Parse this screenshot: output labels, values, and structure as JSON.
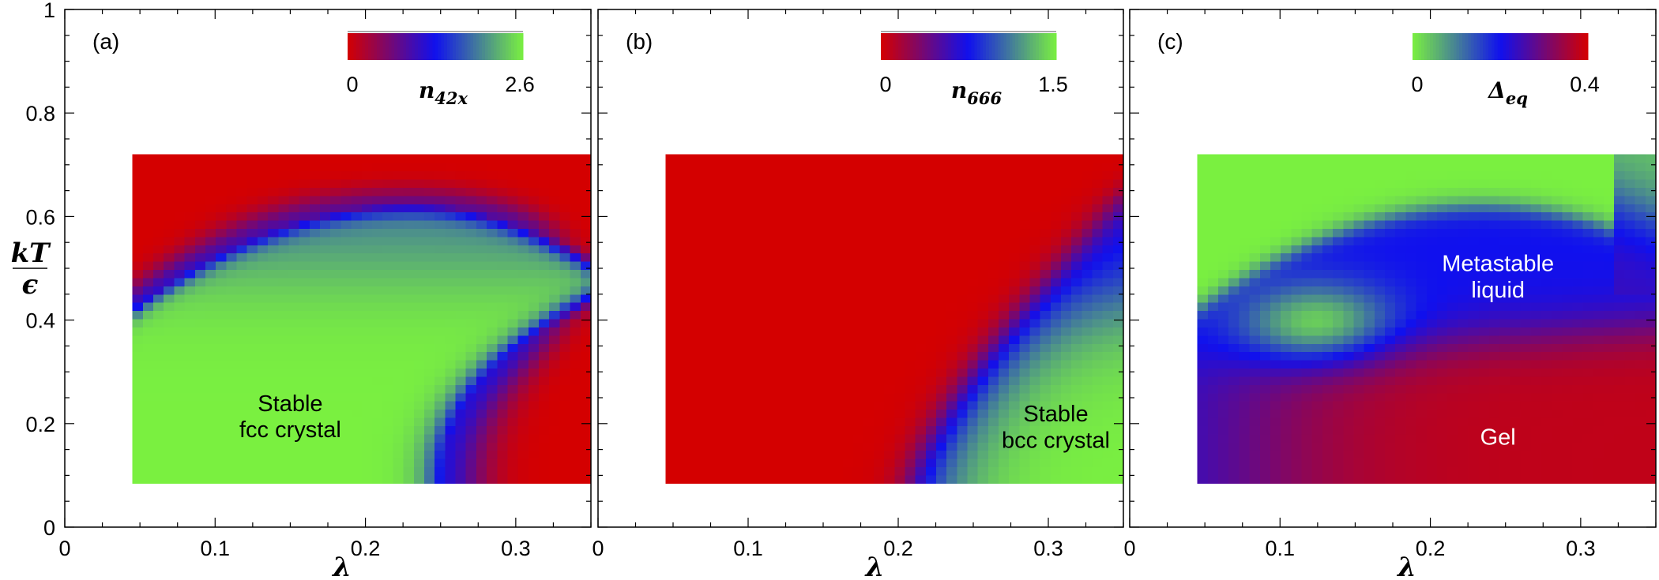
{
  "chart_data": [
    {
      "type": "heatmap",
      "panel_label": "(a)",
      "xlabel": "λ",
      "ylabel": "kT/ϵ",
      "ylabel_num": "kT",
      "ylabel_den": "ϵ",
      "xlim": [
        0,
        0.35
      ],
      "ylim": [
        0,
        1
      ],
      "x_ticks": [
        "0",
        "0.1",
        "0.2",
        "0.3"
      ],
      "y_ticks": [
        "0",
        "0.2",
        "0.4",
        "0.6",
        "0.8",
        "1"
      ],
      "data_extent": {
        "lambda": [
          0.045,
          0.35
        ],
        "kT": [
          0.085,
          0.72
        ]
      },
      "colorbar": {
        "title": "n42x",
        "title_main": "n",
        "title_sub": "42x",
        "min_label": "0",
        "max_label": "2.6",
        "min": 0,
        "max": 2.6,
        "colors": [
          "#d40000",
          "#1010ee",
          "#7af040"
        ]
      },
      "region_note": "high n42x (≈2.6) inside a dome peaking near kT≈0.62 at λ≈0.23, bounded left by the λ=0.045 edge from kT≈0.42, falling to kT≈0.09 near λ≈0.25; low (≈0) outside",
      "annotations": [
        {
          "text": "Stable fcc crystal",
          "lines": [
            "Stable",
            "fcc crystal"
          ],
          "color": "#000000",
          "at": [
            0.15,
            0.22
          ]
        }
      ]
    },
    {
      "type": "heatmap",
      "panel_label": "(b)",
      "xlabel": "λ",
      "xlim": [
        0,
        0.35
      ],
      "ylim": [
        0,
        1
      ],
      "x_ticks": [
        "0",
        "0.1",
        "0.2",
        "0.3"
      ],
      "data_extent": {
        "lambda": [
          0.045,
          0.35
        ],
        "kT": [
          0.085,
          0.72
        ]
      },
      "colorbar": {
        "title": "n666",
        "title_main": "n",
        "title_sub": "666",
        "min_label": "0",
        "max_label": "1.5",
        "min": 0,
        "max": 1.5,
        "colors": [
          "#d40000",
          "#1010ee",
          "#7af040"
        ]
      },
      "region_note": "high n666 (≈1.5) for λ > ≈0.21 at low kT, boundary curving up to kT≈0.6 at λ≈0.35; low (≈0) elsewhere",
      "annotations": [
        {
          "text": "Stable bcc crystal",
          "lines": [
            "Stable",
            "bcc crystal"
          ],
          "color": "#000000",
          "at": [
            0.305,
            0.2
          ]
        }
      ]
    },
    {
      "type": "heatmap",
      "panel_label": "(c)",
      "xlabel": "λ",
      "xlim": [
        0,
        0.35
      ],
      "ylim": [
        0,
        1
      ],
      "x_ticks": [
        "0",
        "0.1",
        "0.2",
        "0.3"
      ],
      "data_extent": {
        "lambda": [
          0.045,
          0.35
        ],
        "kT": [
          0.085,
          0.72
        ]
      },
      "colorbar": {
        "title": "Δeq",
        "title_main": "Δ",
        "title_sub": "eq",
        "min_label": "0",
        "max_label": "0.4",
        "min": 0,
        "max": 0.4,
        "colors": [
          "#7af040",
          "#1010ee",
          "#d40000"
        ]
      },
      "region_note": "Δeq ≈ 0 at high kT and in a green pocket near λ≈0.12, kT≈0.4; ≈0.2 (blue) band in metastable liquid region; ≈0.4 (red) in gel region at low kT",
      "annotations": [
        {
          "text": "Metastable liquid",
          "lines": [
            "Metastable",
            "liquid"
          ],
          "color": "#ffffff",
          "at": [
            0.245,
            0.49
          ]
        },
        {
          "text": "Gel",
          "lines": [
            "Gel"
          ],
          "color": "#ffffff",
          "at": [
            0.245,
            0.175
          ]
        }
      ]
    }
  ]
}
